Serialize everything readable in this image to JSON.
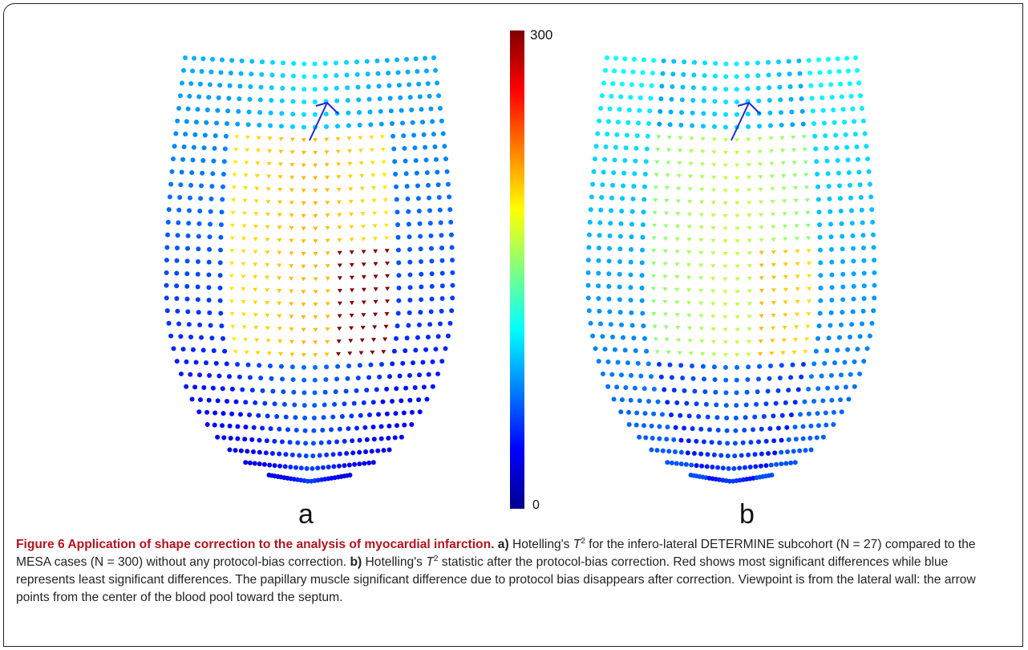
{
  "figure": {
    "panels": [
      {
        "label": "a"
      },
      {
        "label": "b"
      }
    ],
    "colorbar": {
      "max_label": "300",
      "min_label": "0",
      "colormap": "jet"
    }
  },
  "caption": {
    "title": "Figure 6 Application of shape correction to the analysis of myocardial infarction.",
    "a_marker": "a)",
    "a_text_1": "Hotelling's",
    "a_text_2": "for the infero-lateral DETERMINE subcohort (N = 27) compared to the MESA cases (N = 300) without any protocol-bias correction.",
    "b_marker": "b)",
    "b_text_1": "Hotelling's",
    "b_text_2": "statistic after the protocol-bias correction. Red shows most significant differences while blue represents least significant differences. The papillary muscle significant difference due to protocol bias disappears after correction. Viewpoint is from the lateral wall: the arrow points from the center of the blood pool toward the septum.",
    "t_symbol": "T",
    "t_superscript": "2"
  }
}
